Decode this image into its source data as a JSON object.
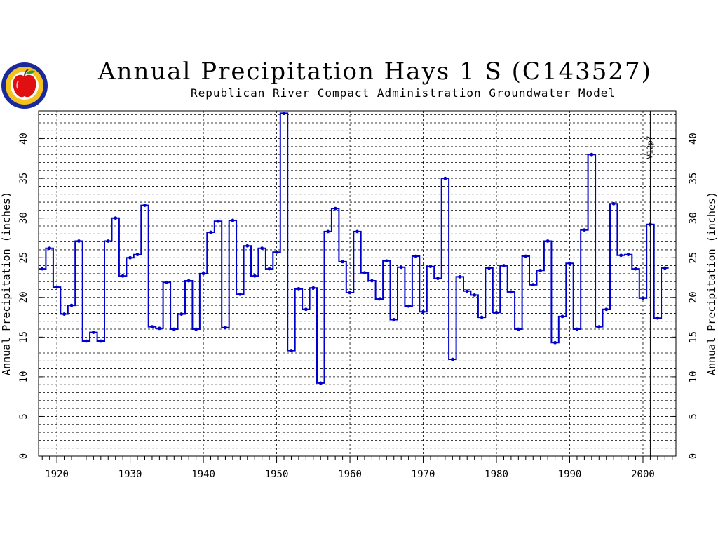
{
  "header": {
    "title": "Annual Precipitation Hays 1 S (C143527)",
    "subtitle": "Republican River Compact Administration Groundwater Model"
  },
  "logo": {
    "name": "apple-seal-logo",
    "colors": {
      "ring": "#1a2a9c",
      "fill": "#f4c21a",
      "apple": "#e01010",
      "leaf": "#2aa02a"
    }
  },
  "colors": {
    "series": "#0000cc",
    "grid": "#000000",
    "marker_line": "#000000"
  },
  "chart_data": {
    "type": "line",
    "step": true,
    "title": "Annual Precipitation Hays 1 S (C143527)",
    "subtitle": "Republican River Compact Administration Groundwater Model",
    "xlabel": "",
    "ylabel": "Annual Precipitation (inches)",
    "ylabel_right": "Annual Precipitation (inches)",
    "xlim": [
      1917.5,
      2004.5
    ],
    "ylim": [
      0,
      43.5
    ],
    "xticks": [
      1920,
      1930,
      1940,
      1950,
      1960,
      1970,
      1980,
      1990,
      2000
    ],
    "yticks": [
      0,
      5,
      10,
      15,
      20,
      25,
      30,
      35,
      40
    ],
    "grid": "dashed horizontal every 1 inch, dashed vertical every 10 years",
    "annotation": {
      "label": "V12p7",
      "x": 2001
    },
    "x": [
      1918,
      1919,
      1920,
      1921,
      1922,
      1923,
      1924,
      1925,
      1926,
      1927,
      1928,
      1929,
      1930,
      1931,
      1932,
      1933,
      1934,
      1935,
      1936,
      1937,
      1938,
      1939,
      1940,
      1941,
      1942,
      1943,
      1944,
      1945,
      1946,
      1947,
      1948,
      1949,
      1950,
      1951,
      1952,
      1953,
      1954,
      1955,
      1956,
      1957,
      1958,
      1959,
      1960,
      1961,
      1962,
      1963,
      1964,
      1965,
      1966,
      1967,
      1968,
      1969,
      1970,
      1971,
      1972,
      1973,
      1974,
      1975,
      1976,
      1977,
      1978,
      1979,
      1980,
      1981,
      1982,
      1983,
      1984,
      1985,
      1986,
      1987,
      1988,
      1989,
      1990,
      1991,
      1992,
      1993,
      1994,
      1995,
      1996,
      1997,
      1998,
      1999,
      2000,
      2001,
      2002,
      2003
    ],
    "series": [
      {
        "values": [
          23.6,
          26.2,
          21.3,
          17.9,
          19.0,
          27.1,
          14.5,
          15.6,
          14.5,
          27.1,
          30.0,
          22.7,
          25.0,
          25.4,
          31.6,
          16.3,
          16.1,
          21.9,
          16.0,
          17.9,
          22.1,
          16.0,
          23.0,
          28.2,
          29.6,
          16.2,
          29.7,
          20.4,
          26.5,
          22.7,
          26.2,
          23.6,
          25.7,
          43.2,
          13.3,
          21.1,
          18.5,
          21.2,
          9.2,
          28.3,
          31.2,
          24.5,
          20.6,
          28.3,
          23.1,
          22.1,
          19.8,
          24.6,
          17.2,
          23.8,
          18.9,
          25.2,
          18.2,
          23.9,
          22.4,
          35.0,
          12.2,
          22.6,
          20.8,
          20.3,
          17.5,
          23.7,
          18.1,
          24.0,
          20.7,
          16.0,
          25.2,
          21.6,
          23.4,
          27.1,
          14.3,
          17.6,
          24.3,
          16.0,
          28.5,
          38.0,
          16.3,
          18.5,
          31.8,
          25.3,
          25.4,
          23.6,
          19.9,
          29.2,
          17.4,
          23.7
        ]
      }
    ]
  }
}
